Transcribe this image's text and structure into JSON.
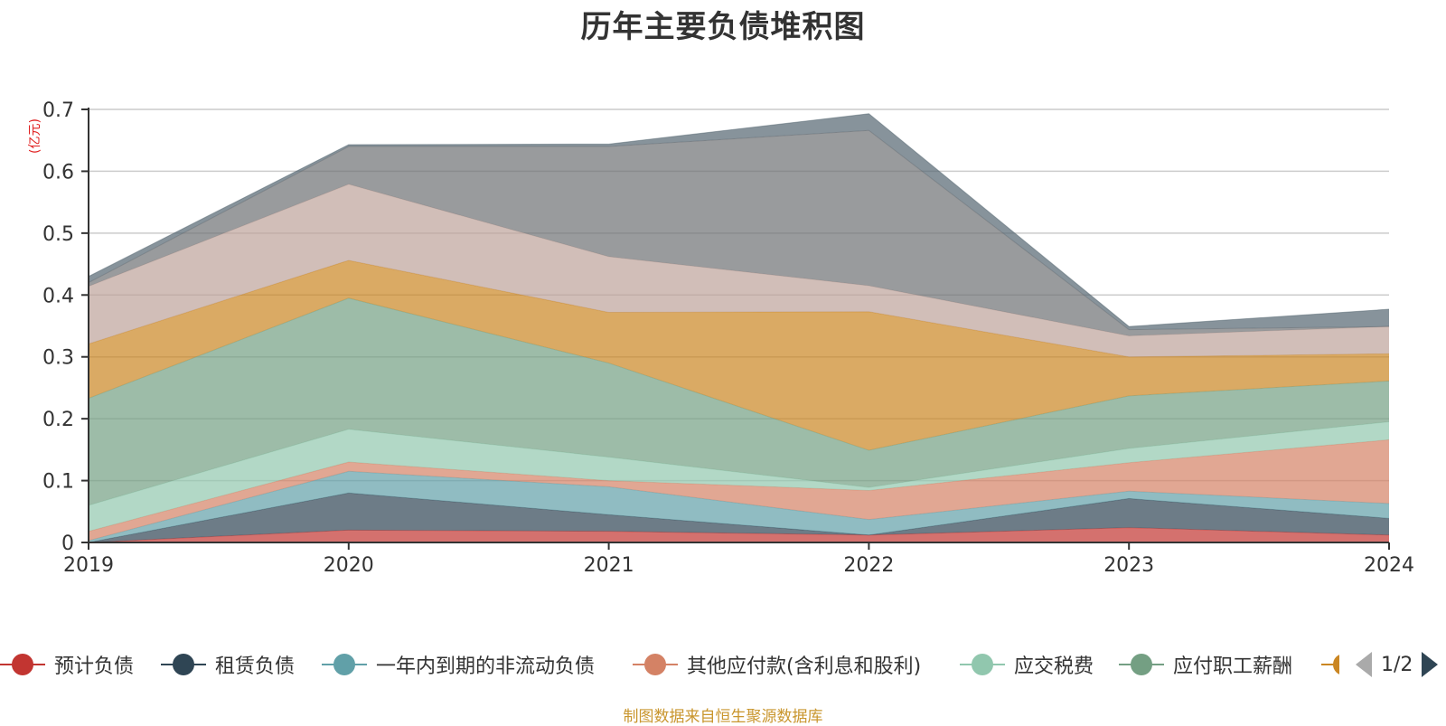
{
  "chart_data": {
    "type": "area",
    "stacked": true,
    "title": "历年主要负债堆积图",
    "ylabel": "(亿元)",
    "xlabel": "",
    "categories": [
      "2019",
      "2020",
      "2021",
      "2022",
      "2023",
      "2024"
    ],
    "ylim": [
      0,
      0.7
    ],
    "yticks": [
      "0",
      "0.1",
      "0.2",
      "0.3",
      "0.4",
      "0.5",
      "0.6",
      "0.7"
    ],
    "grid": true,
    "legend_position": "bottom",
    "series": [
      {
        "name": "预计负债",
        "color": "#c23531",
        "values": [
          0.0,
          0.02,
          0.018,
          0.012,
          0.024,
          0.012
        ]
      },
      {
        "name": "租赁负债",
        "color": "#2f4554",
        "values": [
          0.0,
          0.06,
          0.027,
          0.0,
          0.047,
          0.027
        ]
      },
      {
        "name": "一年内到期的非流动负债",
        "color": "#61a0a8",
        "values": [
          0.003,
          0.035,
          0.045,
          0.025,
          0.012,
          0.024
        ]
      },
      {
        "name": "其他应付款(含利息和股利)",
        "color": "#d48265",
        "values": [
          0.015,
          0.015,
          0.01,
          0.047,
          0.046,
          0.103
        ]
      },
      {
        "name": "应交税费",
        "color": "#91c7ae",
        "values": [
          0.042,
          0.053,
          0.038,
          0.005,
          0.023,
          0.029
        ]
      },
      {
        "name": "应付职工薪酬",
        "color": "#749f83",
        "values": [
          0.173,
          0.212,
          0.152,
          0.06,
          0.085,
          0.066
        ]
      },
      {
        "name": "",
        "color": "#ca8622",
        "values": [
          0.088,
          0.061,
          0.082,
          0.224,
          0.063,
          0.044
        ]
      },
      {
        "name": "",
        "color": "#bda29a",
        "values": [
          0.093,
          0.123,
          0.09,
          0.042,
          0.034,
          0.044
        ]
      },
      {
        "name": "",
        "color": "#6e7074",
        "values": [
          0.006,
          0.061,
          0.178,
          0.251,
          0.01,
          0.0
        ]
      },
      {
        "name": "",
        "color": "#546570",
        "values": [
          0.01,
          0.003,
          0.004,
          0.027,
          0.005,
          0.028
        ]
      }
    ]
  },
  "legend": {
    "items": [
      {
        "label": "预计负债",
        "color": "#c23531"
      },
      {
        "label": "租赁负债",
        "color": "#2f4554"
      },
      {
        "label": "一年内到期的非流动负债",
        "color": "#61a0a8"
      },
      {
        "label": "其他应付款(含利息和股利)",
        "color": "#d48265"
      },
      {
        "label": "应交税费",
        "color": "#91c7ae"
      },
      {
        "label": "应付职工薪酬",
        "color": "#749f83"
      }
    ],
    "partial_item_color": "#ca8622",
    "page": "1/2"
  },
  "source": "制图数据来自恒生聚源数据库"
}
